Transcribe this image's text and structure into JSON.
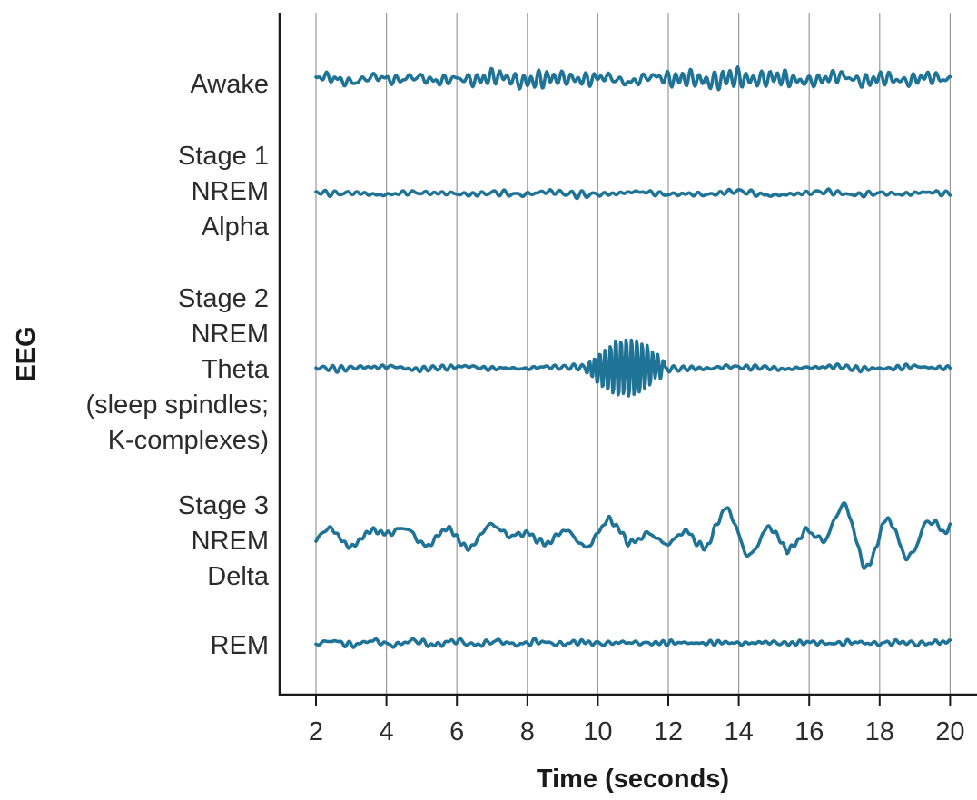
{
  "chart_data": {
    "type": "line",
    "ylabel": "EEG",
    "xlabel": "Time (seconds)",
    "xlim": [
      1,
      21
    ],
    "x_ticks": [
      2,
      4,
      6,
      8,
      10,
      12,
      14,
      16,
      18,
      20
    ],
    "x_tick_labels": [
      "2",
      "4",
      "6",
      "8",
      "10",
      "12",
      "14",
      "16",
      "18",
      "20"
    ],
    "vertical_gridlines": true,
    "trace_color": "#1f7396",
    "traces": [
      {
        "label_lines": [
          "Awake"
        ],
        "rows": 1,
        "x_range": [
          2,
          20
        ],
        "relative_amplitude": 1.0,
        "character": "high-frequency, moderate amplitude throughout"
      },
      {
        "label_lines": [
          "Stage 1",
          "NREM",
          "Alpha"
        ],
        "rows": 3,
        "x_range": [
          2,
          20
        ],
        "relative_amplitude": 0.45,
        "character": "low amplitude, mixed frequency"
      },
      {
        "label_lines": [
          "Stage 2",
          "NREM",
          "Theta",
          "(sleep spindles;",
          "K-complexes)"
        ],
        "rows": 5,
        "x_range": [
          2,
          20
        ],
        "relative_amplitude": 0.45,
        "burst": {
          "x_range": [
            9.6,
            12.0
          ],
          "relative_amplitude": 2.5
        },
        "character": "low amplitude with a sleep-spindle / K-complex burst near 10–12 s"
      },
      {
        "label_lines": [
          "Stage 3",
          "NREM",
          "Delta"
        ],
        "rows": 3,
        "x_range": [
          2,
          20
        ],
        "relative_amplitude": 1.3,
        "growth": {
          "from_x": 10,
          "to_x": 20,
          "max_relative_amplitude": 3.2
        },
        "character": "slow, high-amplitude waves increasing after ~10 s"
      },
      {
        "label_lines": [
          "REM"
        ],
        "rows": 1,
        "x_range": [
          2,
          20
        ],
        "relative_amplitude": 0.45,
        "character": "low amplitude, mixed frequency (similar to awake)"
      }
    ]
  }
}
